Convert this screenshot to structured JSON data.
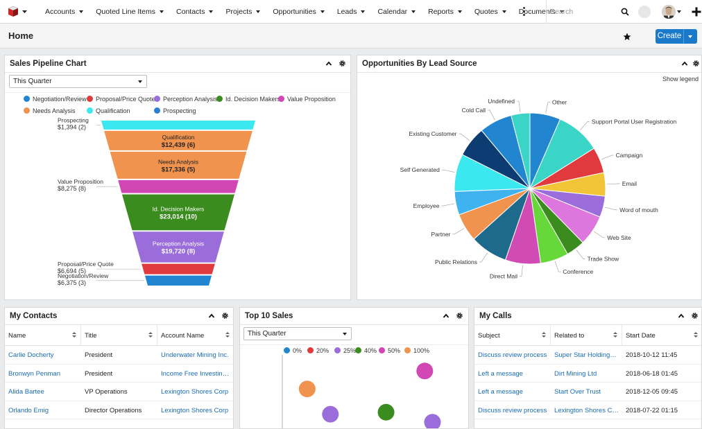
{
  "nav": {
    "items": [
      "Accounts",
      "Quoted Line Items",
      "Contacts",
      "Projects",
      "Opportunities",
      "Leads",
      "Calendar",
      "Reports",
      "Quotes",
      "Documents"
    ],
    "search_placeholder": "Search"
  },
  "page": {
    "title": "Home",
    "create_label": "Create"
  },
  "pipeline": {
    "title": "Sales Pipeline Chart",
    "filter": "This Quarter",
    "legend": [
      {
        "name": "Negotiation/Review",
        "color": "#2185d0"
      },
      {
        "name": "Proposal/Price Quote",
        "color": "#e0393e"
      },
      {
        "name": "Perception Analysis",
        "color": "#9a6ddb"
      },
      {
        "name": "Id. Decision Makers",
        "color": "#3b8c1e"
      },
      {
        "name": "Value Proposition",
        "color": "#d147b3"
      },
      {
        "name": "Needs Analysis",
        "color": "#f0934e"
      },
      {
        "name": "Qualification",
        "color": "#3be8ef"
      },
      {
        "name": "Prospecting",
        "color": "#2a7fd4"
      }
    ],
    "chart_data": {
      "type": "funnel",
      "stages": [
        {
          "name": "Prospecting",
          "value": 1394,
          "count": 2,
          "amount_label": "$1,394 (2)",
          "color": "#3be8ef"
        },
        {
          "name": "Qualification",
          "value": 12439,
          "count": 6,
          "amount_label": "$12,439 (6)",
          "color": "#f0934e"
        },
        {
          "name": "Needs Analysis",
          "value": 17336,
          "count": 5,
          "amount_label": "$17,336 (5)",
          "color": "#f0934e"
        },
        {
          "name": "Value Proposition",
          "value": 8275,
          "count": 8,
          "amount_label": "$8,275 (8)",
          "color": "#d147b3"
        },
        {
          "name": "Id. Decision Makers",
          "value": 23014,
          "count": 10,
          "amount_label": "$23,014 (10)",
          "color": "#3b8c1e"
        },
        {
          "name": "Perception Analysis",
          "value": 19720,
          "count": 8,
          "amount_label": "$19,720 (8)",
          "color": "#9a6ddb"
        },
        {
          "name": "Proposal/Price Quote",
          "value": 6694,
          "count": 5,
          "amount_label": "$6,694 (5)",
          "color": "#e0393e"
        },
        {
          "name": "Negotiation/Review",
          "value": 6375,
          "count": 3,
          "amount_label": "$6,375 (3)",
          "color": "#2185d0"
        }
      ]
    }
  },
  "leadsource": {
    "title": "Opportunities By Lead Source",
    "show_legend": "Show legend",
    "chart_data": {
      "type": "pie",
      "slices": [
        {
          "label": "Other",
          "value": 6.5,
          "color": "#2185d0"
        },
        {
          "label": "Support Portal User Registration",
          "value": 9.5,
          "color": "#3ad5c6"
        },
        {
          "label": "Campaign",
          "value": 5.5,
          "color": "#e0393e"
        },
        {
          "label": "Email",
          "value": 5,
          "color": "#f2c438"
        },
        {
          "label": "Word of mouth",
          "value": 4.5,
          "color": "#9a6ddb"
        },
        {
          "label": "Web Site",
          "value": 6.5,
          "color": "#dd77dd"
        },
        {
          "label": "Trade Show",
          "value": 4,
          "color": "#3b8c1e"
        },
        {
          "label": "Conference",
          "value": 6,
          "color": "#66d83a"
        },
        {
          "label": "Direct Mail",
          "value": 7.5,
          "color": "#d14bb5"
        },
        {
          "label": "Public Relations",
          "value": 8,
          "color": "#1e6a8c"
        },
        {
          "label": "Partner",
          "value": 6,
          "color": "#f0934e"
        },
        {
          "label": "Employee",
          "value": 5,
          "color": "#3fb3f0"
        },
        {
          "label": "Self Generated",
          "value": 8,
          "color": "#3be8ef"
        },
        {
          "label": "Existing Customer",
          "value": 6.5,
          "color": "#0d3c73"
        },
        {
          "label": "Cold Call",
          "value": 7,
          "color": "#2185d0"
        },
        {
          "label": "Undefined",
          "value": 4,
          "color": "#3ad5c6"
        }
      ]
    }
  },
  "contacts": {
    "title": "My Contacts",
    "columns": [
      "Name",
      "Title",
      "Account Name"
    ],
    "rows": [
      [
        "Carlie Docherty",
        "President",
        "Underwater Mining Inc."
      ],
      [
        "Bronwyn Penman",
        "President",
        "Income Free Investing LP"
      ],
      [
        "Alida Bartee",
        "VP Operations",
        "Lexington Shores Corp"
      ],
      [
        "Orlando Emig",
        "Director Operations",
        "Lexington Shores Corp"
      ]
    ]
  },
  "topsales": {
    "title": "Top 10 Sales",
    "filter": "This Quarter",
    "chart_data": {
      "type": "scatter",
      "legend": [
        {
          "name": "0%",
          "color": "#2185d0"
        },
        {
          "name": "20%",
          "color": "#e0393e"
        },
        {
          "name": "25%",
          "color": "#9a6ddb"
        },
        {
          "name": "40%",
          "color": "#3b8c1e"
        },
        {
          "name": "50%",
          "color": "#d147b3"
        },
        {
          "name": "100%",
          "color": "#f0934e"
        }
      ],
      "points": [
        {
          "series": "50%",
          "x": 0.84,
          "y": 0.82,
          "color": "#d147b3"
        },
        {
          "series": "100%",
          "x": 0.08,
          "y": 0.55,
          "color": "#f0934e"
        },
        {
          "series": "40%",
          "x": 0.59,
          "y": 0.2,
          "color": "#3b8c1e"
        },
        {
          "series": "25%",
          "x": 0.23,
          "y": 0.17,
          "color": "#9a6ddb"
        },
        {
          "series": "25%",
          "x": 0.89,
          "y": 0.05,
          "color": "#9a6ddb"
        }
      ]
    }
  },
  "calls": {
    "title": "My Calls",
    "columns": [
      "Subject",
      "Related to",
      "Start Date"
    ],
    "rows": [
      [
        "Discuss review process",
        "Super Star Holdings Inc",
        "2018-10-12 11:45"
      ],
      [
        "Left a message",
        "Dirt Mining Ltd",
        "2018-06-18 01:45"
      ],
      [
        "Left a message",
        "Start Over Trust",
        "2018-12-05 09:45"
      ],
      [
        "Discuss review process",
        "Lexington Shores Corp",
        "2018-07-22 01:15"
      ]
    ]
  }
}
